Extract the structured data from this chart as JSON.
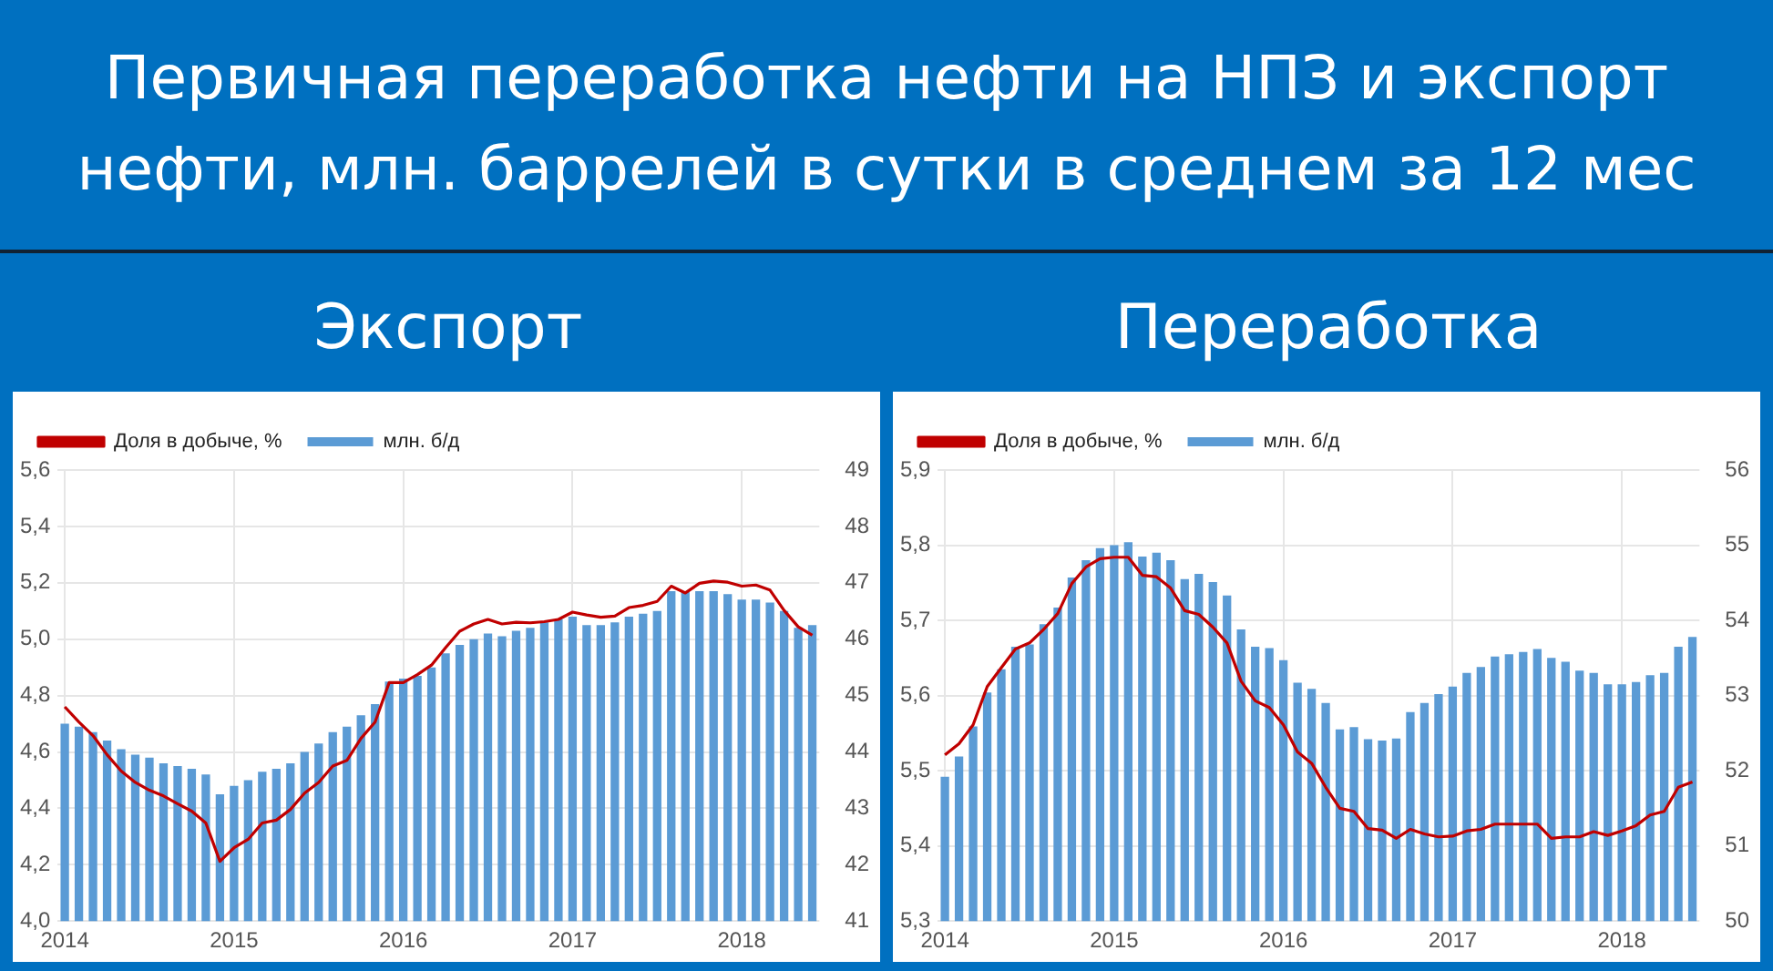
{
  "chart_data": [
    {
      "type": "bar",
      "title": "Первичная переработка нефти на НПЗ и экспорт нефти, млн. баррелей в сутки в среднем за 12 мес",
      "subtitle": "Экспорт",
      "categories": [
        "2014",
        null,
        null,
        null,
        null,
        null,
        null,
        null,
        null,
        null,
        null,
        null,
        "2015",
        null,
        null,
        null,
        null,
        null,
        null,
        null,
        null,
        null,
        null,
        null,
        "2016",
        null,
        null,
        null,
        null,
        null,
        null,
        null,
        null,
        null,
        null,
        null,
        "2017",
        null,
        null,
        null,
        null,
        null,
        null,
        null,
        null,
        null,
        null,
        null,
        "2018",
        null,
        null,
        null,
        null,
        null
      ],
      "series": [
        {
          "name": "млн. б/д",
          "color": "#5b9bd5",
          "values": [
            4.7,
            4.69,
            4.67,
            4.64,
            4.61,
            4.59,
            4.58,
            4.56,
            4.55,
            4.54,
            4.52,
            4.45,
            4.48,
            4.5,
            4.53,
            4.54,
            4.56,
            4.6,
            4.63,
            4.67,
            4.69,
            4.73,
            4.77,
            4.85,
            4.86,
            4.87,
            4.9,
            4.95,
            4.98,
            5.0,
            5.02,
            5.01,
            5.03,
            5.04,
            5.06,
            5.07,
            5.08,
            5.05,
            5.05,
            5.06,
            5.08,
            5.09,
            5.1,
            5.17,
            5.17,
            5.17,
            5.17,
            5.16,
            5.14,
            5.14,
            5.13,
            5.1,
            5.04,
            5.05
          ]
        },
        {
          "name": "Доля в добыче, %",
          "type": "line",
          "axis": "y2",
          "color": "#c00000",
          "values": [
            44.8,
            44.53,
            44.29,
            43.95,
            43.66,
            43.46,
            43.32,
            43.22,
            43.08,
            42.95,
            42.74,
            42.06,
            42.3,
            42.45,
            42.74,
            42.79,
            42.98,
            43.27,
            43.46,
            43.75,
            43.85,
            44.24,
            44.53,
            45.23,
            45.23,
            45.37,
            45.54,
            45.85,
            46.14,
            46.27,
            46.35,
            46.27,
            46.3,
            46.29,
            46.31,
            46.35,
            46.48,
            46.43,
            46.39,
            46.41,
            46.56,
            46.6,
            46.67,
            46.94,
            46.82,
            46.99,
            47.03,
            47.01,
            46.94,
            46.96,
            46.87,
            46.51,
            46.22,
            46.07
          ]
        }
      ],
      "ylim": [
        4.0,
        5.6
      ],
      "yticks": [
        {
          "value": 4.0,
          "label": "4,0"
        },
        {
          "value": 4.2,
          "label": "4,2"
        },
        {
          "value": 4.4,
          "label": "4,4"
        },
        {
          "value": 4.6,
          "label": "4,6"
        },
        {
          "value": 4.8,
          "label": "4,8"
        },
        {
          "value": 5.0,
          "label": "5,0"
        },
        {
          "value": 5.2,
          "label": "5,2"
        },
        {
          "value": 5.4,
          "label": "5,4"
        },
        {
          "value": 5.6,
          "label": "5,6"
        }
      ],
      "y2lim": [
        41,
        49
      ],
      "y2ticks": [
        41,
        42,
        43,
        44,
        45,
        46,
        47,
        48,
        49
      ],
      "grid": true,
      "legend": "top left",
      "marker": "none"
    },
    {
      "type": "bar",
      "subtitle": "Переработка",
      "categories": [
        "2014",
        null,
        null,
        null,
        null,
        null,
        null,
        null,
        null,
        null,
        null,
        null,
        "2015",
        null,
        null,
        null,
        null,
        null,
        null,
        null,
        null,
        null,
        null,
        null,
        "2016",
        null,
        null,
        null,
        null,
        null,
        null,
        null,
        null,
        null,
        null,
        null,
        "2017",
        null,
        null,
        null,
        null,
        null,
        null,
        null,
        null,
        null,
        null,
        null,
        "2018",
        null,
        null,
        null,
        null,
        null
      ],
      "series": [
        {
          "name": "млн. б/д",
          "color": "#5b9bd5",
          "values": [
            5.492,
            5.519,
            5.559,
            5.604,
            5.635,
            5.665,
            5.668,
            5.695,
            5.717,
            5.757,
            5.78,
            5.796,
            5.8,
            5.804,
            5.785,
            5.79,
            5.78,
            5.755,
            5.762,
            5.751,
            5.733,
            5.688,
            5.665,
            5.663,
            5.647,
            5.617,
            5.609,
            5.59,
            5.555,
            5.558,
            5.542,
            5.54,
            5.543,
            5.578,
            5.59,
            5.602,
            5.612,
            5.63,
            5.638,
            5.652,
            5.655,
            5.658,
            5.662,
            5.65,
            5.645,
            5.633,
            5.63,
            5.615,
            5.615,
            5.618,
            5.627,
            5.63,
            5.665,
            5.678
          ]
        },
        {
          "name": "Доля в добыче, %",
          "type": "line",
          "axis": "y2",
          "color": "#c00000",
          "values": [
            52.21,
            52.36,
            52.61,
            53.12,
            53.37,
            53.62,
            53.7,
            53.88,
            54.09,
            54.49,
            54.71,
            54.82,
            54.84,
            54.84,
            54.6,
            54.58,
            54.43,
            54.13,
            54.08,
            53.91,
            53.7,
            53.19,
            52.93,
            52.84,
            52.61,
            52.25,
            52.1,
            51.78,
            51.5,
            51.46,
            51.23,
            51.21,
            51.1,
            51.22,
            51.16,
            51.12,
            51.13,
            51.2,
            51.22,
            51.29,
            51.29,
            51.29,
            51.29,
            51.1,
            51.12,
            51.12,
            51.19,
            51.14,
            51.2,
            51.27,
            51.41,
            51.46,
            51.78,
            51.85
          ]
        }
      ],
      "ylim": [
        5.3,
        5.9
      ],
      "yticks": [
        {
          "value": 5.3,
          "label": "5,3"
        },
        {
          "value": 5.4,
          "label": "5,4"
        },
        {
          "value": 5.5,
          "label": "5,5"
        },
        {
          "value": 5.6,
          "label": "5,6"
        },
        {
          "value": 5.7,
          "label": "5,7"
        },
        {
          "value": 5.8,
          "label": "5,8"
        },
        {
          "value": 5.9,
          "label": "5,9"
        }
      ],
      "y2lim": [
        50,
        56
      ],
      "y2ticks": [
        50,
        51,
        52,
        53,
        54,
        55,
        56
      ],
      "grid": true,
      "legend": "top left",
      "marker": "none"
    }
  ]
}
